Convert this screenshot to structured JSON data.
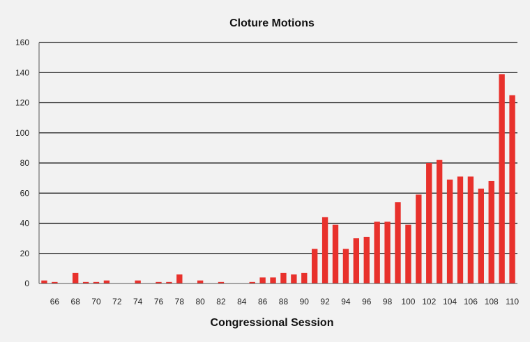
{
  "chart_data": {
    "type": "bar",
    "title": "Cloture Motions",
    "xlabel": "Congressional Session",
    "ylabel": "",
    "ylim": [
      0,
      160
    ],
    "yticks": [
      0,
      20,
      40,
      60,
      80,
      100,
      120,
      140,
      160
    ],
    "grid": true,
    "bar_color": "#e8312c",
    "categories": [
      "65",
      "66",
      "67",
      "68",
      "69",
      "70",
      "71",
      "72",
      "73",
      "74",
      "75",
      "76",
      "77",
      "78",
      "79",
      "80",
      "81",
      "82",
      "83",
      "84",
      "85",
      "86",
      "87",
      "88",
      "89",
      "90",
      "91",
      "92",
      "93",
      "94",
      "95",
      "96",
      "97",
      "98",
      "99",
      "100",
      "101",
      "102",
      "103",
      "104",
      "105",
      "106",
      "107",
      "108",
      "109",
      "110"
    ],
    "tick_labels": [
      "66",
      "68",
      "70",
      "72",
      "74",
      "76",
      "78",
      "80",
      "82",
      "84",
      "86",
      "88",
      "90",
      "92",
      "94",
      "96",
      "98",
      "100",
      "102",
      "104",
      "106",
      "108",
      "110"
    ],
    "values": [
      2,
      1,
      0,
      7,
      1,
      1,
      2,
      0,
      0,
      2,
      0,
      1,
      1,
      6,
      0,
      2,
      0,
      1,
      0,
      0,
      1,
      4,
      4,
      7,
      6,
      7,
      23,
      44,
      39,
      23,
      30,
      31,
      41,
      41,
      54,
      39,
      59,
      80,
      82,
      69,
      71,
      71,
      63,
      68,
      139,
      125
    ]
  }
}
